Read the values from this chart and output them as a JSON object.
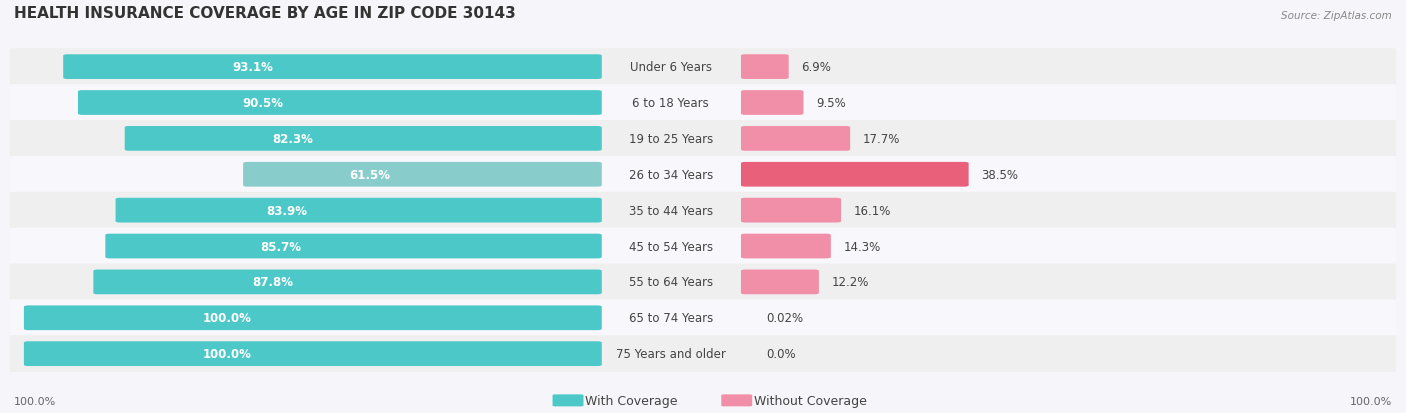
{
  "title": "HEALTH INSURANCE COVERAGE BY AGE IN ZIP CODE 30143",
  "source": "Source: ZipAtlas.com",
  "categories": [
    "Under 6 Years",
    "6 to 18 Years",
    "19 to 25 Years",
    "26 to 34 Years",
    "35 to 44 Years",
    "45 to 54 Years",
    "55 to 64 Years",
    "65 to 74 Years",
    "75 Years and older"
  ],
  "with_coverage": [
    93.1,
    90.5,
    82.3,
    61.5,
    83.9,
    85.7,
    87.8,
    100.0,
    100.0
  ],
  "without_coverage": [
    6.9,
    9.5,
    17.7,
    38.5,
    16.1,
    14.3,
    12.2,
    0.02,
    0.0
  ],
  "with_coverage_labels": [
    "93.1%",
    "90.5%",
    "82.3%",
    "61.5%",
    "83.9%",
    "85.7%",
    "87.8%",
    "100.0%",
    "100.0%"
  ],
  "without_coverage_labels": [
    "6.9%",
    "9.5%",
    "17.7%",
    "38.5%",
    "16.1%",
    "14.3%",
    "12.2%",
    "0.02%",
    "0.0%"
  ],
  "color_with": "#4DC8C8",
  "color_without": "#F28FA8",
  "color_with_light": "#7DDADA",
  "background_row_light": "#F0F0F5",
  "background_row_white": "#FAFAFA",
  "bar_bg": "#E8E8EE",
  "title_fontsize": 11,
  "label_fontsize": 8.5,
  "legend_fontsize": 9,
  "figsize": [
    14.06,
    4.14
  ],
  "dpi": 100
}
